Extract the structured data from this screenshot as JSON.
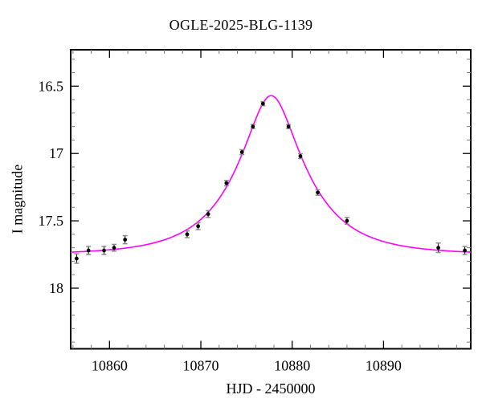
{
  "chart_data": {
    "type": "scatter",
    "title": "OGLE-2025-BLG-1139",
    "xlabel": "HJD - 2450000",
    "ylabel": "I magnitude",
    "x_axis": {
      "min": 10855.75,
      "max": 10899.55,
      "major_ticks": [
        10860,
        10870,
        10880,
        10890
      ],
      "minor_tick_step": 2
    },
    "y_axis": {
      "top_mag": 16.23,
      "bottom_mag": 18.45,
      "major_ticks": [
        16.5,
        17.0,
        17.5,
        18.0
      ],
      "minor_tick_step": 0.1,
      "inverted": true
    },
    "grid": false,
    "legend": "none",
    "colors": {
      "model_curve": "#ff00ff",
      "data_points": "#000000",
      "errorbar_caps": "#8a8a8a",
      "frame": "#000000"
    },
    "points": [
      {
        "t": 10856.4,
        "mag": 17.78,
        "err": 0.035
      },
      {
        "t": 10857.7,
        "mag": 17.72,
        "err": 0.03
      },
      {
        "t": 10859.4,
        "mag": 17.72,
        "err": 0.03
      },
      {
        "t": 10860.5,
        "mag": 17.7,
        "err": 0.025
      },
      {
        "t": 10861.7,
        "mag": 17.64,
        "err": 0.03
      },
      {
        "t": 10868.5,
        "mag": 17.6,
        "err": 0.025
      },
      {
        "t": 10869.7,
        "mag": 17.54,
        "err": 0.025
      },
      {
        "t": 10870.8,
        "mag": 17.45,
        "err": 0.025
      },
      {
        "t": 10872.8,
        "mag": 17.22,
        "err": 0.02
      },
      {
        "t": 10874.5,
        "mag": 16.99,
        "err": 0.018
      },
      {
        "t": 10875.7,
        "mag": 16.8,
        "err": 0.015
      },
      {
        "t": 10876.8,
        "mag": 16.63,
        "err": 0.015
      },
      {
        "t": 10879.6,
        "mag": 16.8,
        "err": 0.015
      },
      {
        "t": 10880.9,
        "mag": 17.02,
        "err": 0.018
      },
      {
        "t": 10882.8,
        "mag": 17.29,
        "err": 0.02
      },
      {
        "t": 10886.0,
        "mag": 17.5,
        "err": 0.025
      },
      {
        "t": 10896.0,
        "mag": 17.7,
        "err": 0.035
      },
      {
        "t": 10898.9,
        "mag": 17.72,
        "err": 0.03
      }
    ],
    "model_curve": {
      "model": "paczynski",
      "t0": 10877.7,
      "tE": 7.3,
      "u0": 0.353,
      "baseline_mag": 17.75,
      "peak_mag": 16.57
    }
  }
}
